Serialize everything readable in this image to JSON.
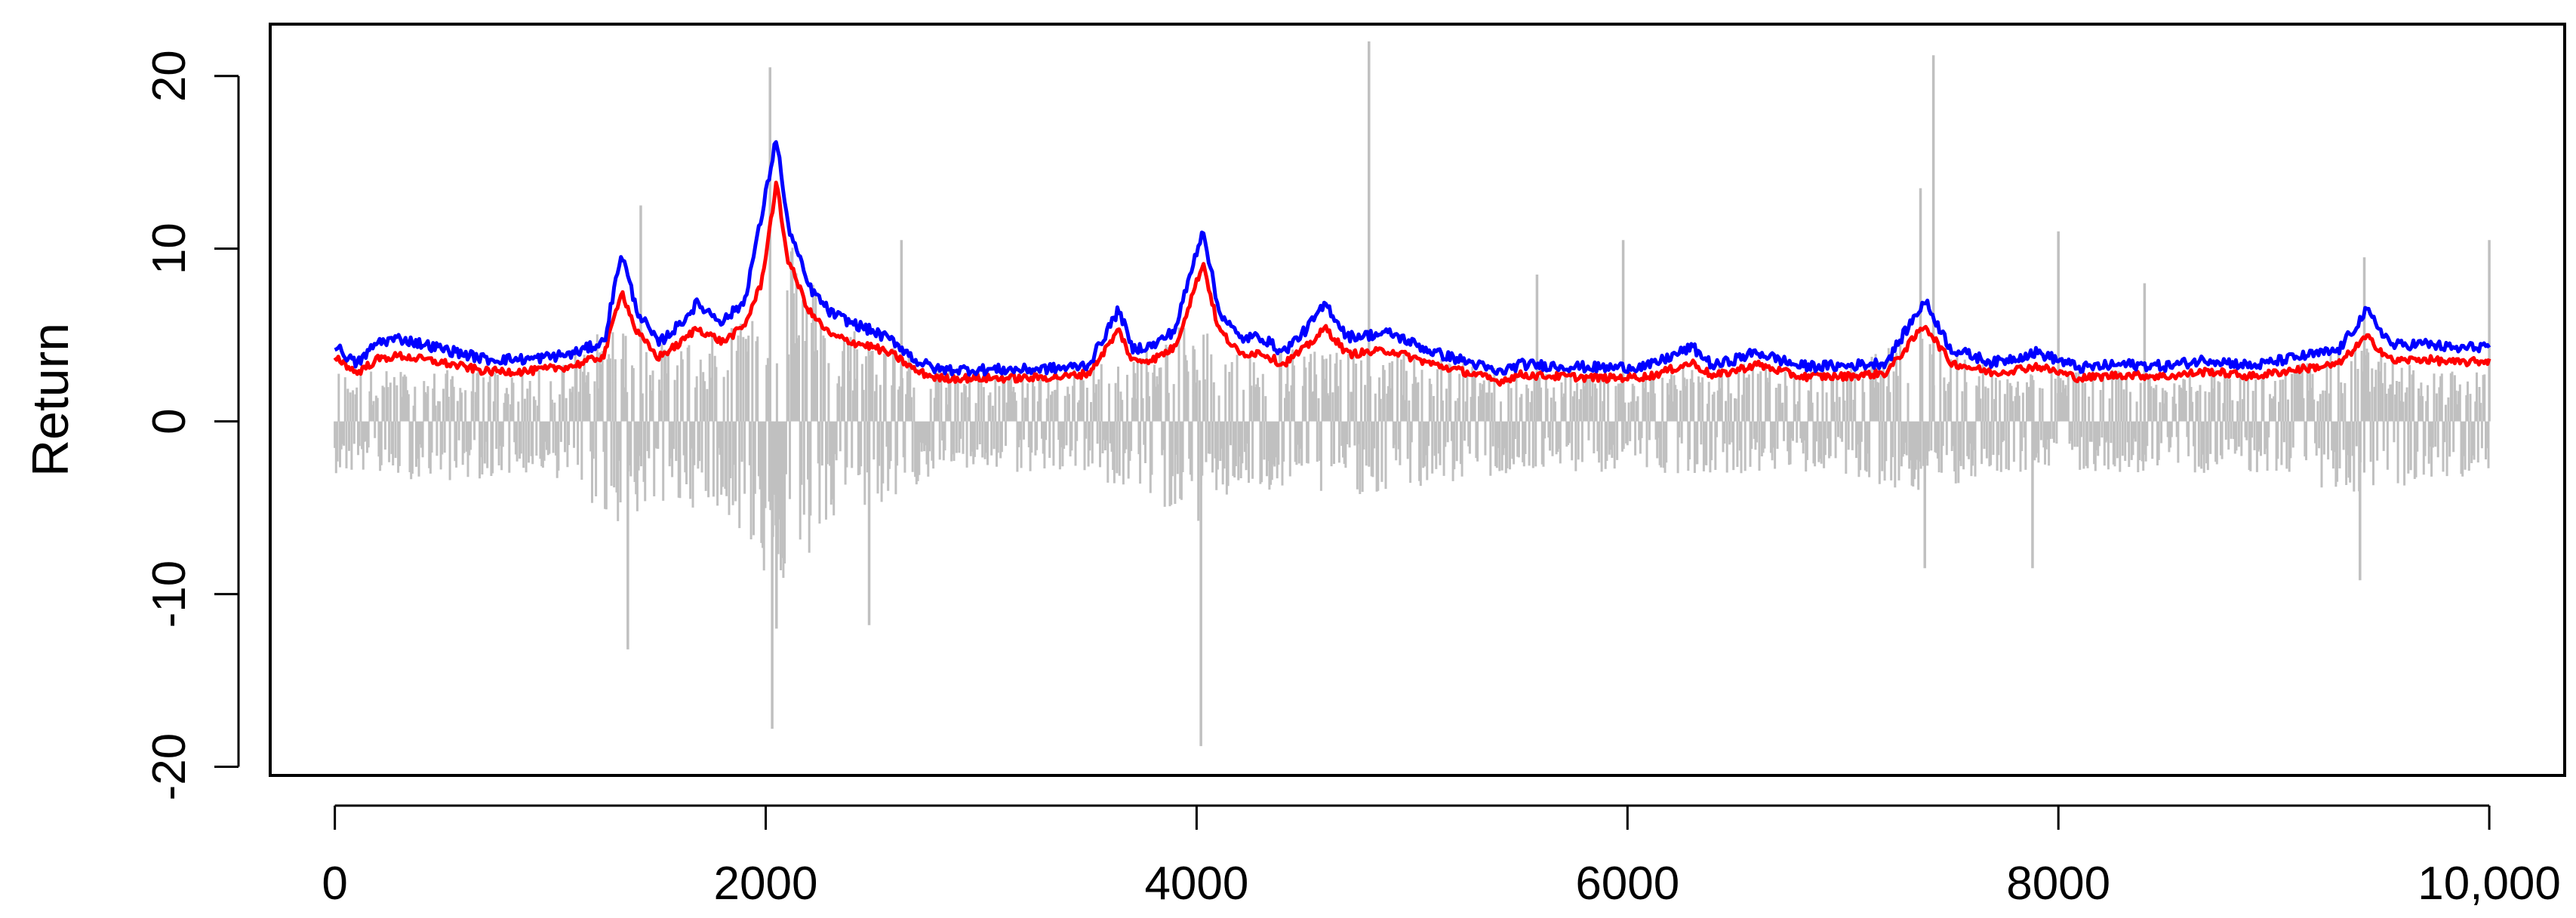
{
  "chart_data": {
    "type": "line",
    "title": "",
    "xlabel": "",
    "ylabel": "Return",
    "xlim": [
      -300,
      10350
    ],
    "ylim": [
      -20.5,
      23
    ],
    "x_ticks": [
      0,
      2000,
      4000,
      6000,
      8000,
      10000
    ],
    "x_tick_labels": [
      "0",
      "2000",
      "4000",
      "6000",
      "8000",
      "10,000"
    ],
    "y_ticks": [
      -20,
      -10,
      0,
      10,
      20
    ],
    "y_tick_labels": [
      "-20",
      "-10",
      "0",
      "10",
      "20"
    ],
    "grid": false,
    "legend": "none",
    "n_points": 10000,
    "series": [
      {
        "kind": "vertical-spikes",
        "color": "#c0c0c0",
        "description_points": "returns",
        "positive_envelope": {
          "x": [
            0,
            500,
            1000,
            1300,
            1500,
            1800,
            2000,
            2100,
            2300,
            2600,
            2800,
            3000,
            3400,
            3700,
            4000,
            4200,
            4500,
            5000,
            5500,
            6000,
            6500,
            7000,
            7400,
            7700,
            8000,
            8500,
            9000,
            9400,
            9700,
            10000
          ],
          "y": [
            3.0,
            3.0,
            3.0,
            6.0,
            4.5,
            5.0,
            9.0,
            12.0,
            6.0,
            5.0,
            3.0,
            3.0,
            3.0,
            4.0,
            6.0,
            4.0,
            4.5,
            4.0,
            3.0,
            3.0,
            3.5,
            3.0,
            5.5,
            3.0,
            3.0,
            3.0,
            3.0,
            4.5,
            3.0,
            3.0
          ]
        },
        "negative_envelope": {
          "x": [
            0,
            500,
            1000,
            1300,
            1500,
            1800,
            2000,
            2100,
            2300,
            2600,
            2800,
            3000,
            3400,
            3700,
            4000,
            4200,
            4500,
            5000,
            5500,
            6000,
            6500,
            7000,
            7400,
            7700,
            8000,
            8500,
            9000,
            9400,
            9700,
            10000
          ],
          "y": [
            -3.0,
            -3.5,
            -3.0,
            -6.0,
            -5.0,
            -5.0,
            -9.0,
            -10.0,
            -6.0,
            -4.5,
            -3.0,
            -3.0,
            -3.0,
            -4.0,
            -6.0,
            -4.0,
            -4.5,
            -4.0,
            -3.0,
            -3.0,
            -3.0,
            -3.0,
            -4.5,
            -3.0,
            -3.0,
            -3.0,
            -3.0,
            -4.5,
            -3.5,
            -3.0
          ]
        },
        "extreme_spikes": [
          {
            "x": 1360,
            "y": -13.2
          },
          {
            "x": 1420,
            "y": 12.5
          },
          {
            "x": 2020,
            "y": 20.5
          },
          {
            "x": 2030,
            "y": -17.8
          },
          {
            "x": 2050,
            "y": -12.0
          },
          {
            "x": 2480,
            "y": -11.8
          },
          {
            "x": 2630,
            "y": 10.5
          },
          {
            "x": 4020,
            "y": -18.8
          },
          {
            "x": 4800,
            "y": 22.0
          },
          {
            "x": 5580,
            "y": 8.5
          },
          {
            "x": 5980,
            "y": 10.5
          },
          {
            "x": 7360,
            "y": 13.5
          },
          {
            "x": 7420,
            "y": 21.2
          },
          {
            "x": 7380,
            "y": -8.5
          },
          {
            "x": 7880,
            "y": -8.5
          },
          {
            "x": 8000,
            "y": 11.0
          },
          {
            "x": 8400,
            "y": 8.0
          },
          {
            "x": 9400,
            "y": -9.2
          },
          {
            "x": 9420,
            "y": 9.5
          },
          {
            "x": 10000,
            "y": 10.5
          }
        ]
      },
      {
        "kind": "line",
        "color": "#ff0000",
        "x": [
          0,
          100,
          200,
          300,
          500,
          700,
          900,
          1100,
          1250,
          1330,
          1400,
          1500,
          1600,
          1680,
          1800,
          1900,
          1980,
          2050,
          2100,
          2200,
          2300,
          2400,
          2500,
          2600,
          2700,
          2800,
          3000,
          3200,
          3400,
          3500,
          3640,
          3700,
          3800,
          3900,
          4030,
          4100,
          4200,
          4300,
          4400,
          4500,
          4600,
          4700,
          4900,
          5100,
          5300,
          5400,
          5500,
          5700,
          5900,
          6100,
          6300,
          6400,
          6600,
          6800,
          7000,
          7200,
          7380,
          7500,
          7700,
          7900,
          8100,
          8300,
          8500,
          8700,
          8900,
          9100,
          9300,
          9430,
          9550,
          9700,
          9850,
          10000
        ],
        "y": [
          3.8,
          2.8,
          3.6,
          3.8,
          3.4,
          2.9,
          2.9,
          3.2,
          3.8,
          7.6,
          5.2,
          3.7,
          4.5,
          5.4,
          4.6,
          5.5,
          8.0,
          13.8,
          9.5,
          6.4,
          5.0,
          4.6,
          4.3,
          3.8,
          2.9,
          2.5,
          2.5,
          2.5,
          2.6,
          2.8,
          5.3,
          3.5,
          3.6,
          4.3,
          9.2,
          5.4,
          3.9,
          4.0,
          3.3,
          4.2,
          5.4,
          3.9,
          4.1,
          3.3,
          2.7,
          2.3,
          2.7,
          2.6,
          2.5,
          2.6,
          3.4,
          2.6,
          3.3,
          2.6,
          2.6,
          2.8,
          5.6,
          3.4,
          2.8,
          3.2,
          2.5,
          2.7,
          2.6,
          2.9,
          2.6,
          3.0,
          3.3,
          4.9,
          3.5,
          3.6,
          3.4,
          3.5
        ]
      },
      {
        "kind": "line",
        "color": "#0000ff",
        "x": [
          0,
          100,
          200,
          300,
          500,
          700,
          900,
          1100,
          1250,
          1330,
          1400,
          1500,
          1600,
          1680,
          1800,
          1900,
          1980,
          2050,
          2100,
          2200,
          2300,
          2400,
          2500,
          2600,
          2700,
          2800,
          3000,
          3200,
          3400,
          3500,
          3640,
          3700,
          3800,
          3900,
          4030,
          4100,
          4200,
          4300,
          4400,
          4500,
          4600,
          4700,
          4900,
          5100,
          5300,
          5400,
          5500,
          5700,
          5900,
          6100,
          6300,
          6400,
          6600,
          6800,
          7000,
          7200,
          7380,
          7500,
          7700,
          7900,
          8100,
          8300,
          8500,
          8700,
          8900,
          9100,
          9300,
          9430,
          9550,
          9700,
          9850,
          10000
        ],
        "y": [
          4.4,
          3.3,
          4.6,
          4.8,
          4.2,
          3.6,
          3.6,
          3.9,
          4.6,
          9.8,
          6.5,
          4.5,
          5.6,
          6.8,
          5.8,
          6.9,
          11.8,
          16.5,
          11.5,
          7.8,
          6.3,
          5.7,
          5.2,
          4.6,
          3.5,
          3.0,
          3.0,
          3.0,
          3.1,
          3.3,
          6.5,
          4.2,
          4.4,
          5.3,
          11.2,
          6.5,
          4.8,
          4.9,
          4.0,
          5.2,
          6.8,
          4.9,
          5.1,
          4.0,
          3.3,
          2.8,
          3.3,
          3.2,
          3.1,
          3.2,
          4.3,
          3.2,
          4.0,
          3.2,
          3.2,
          3.4,
          7.0,
          4.2,
          3.4,
          4.0,
          3.1,
          3.3,
          3.2,
          3.6,
          3.2,
          3.7,
          4.1,
          6.4,
          4.4,
          4.5,
          4.2,
          4.4
        ]
      }
    ]
  }
}
